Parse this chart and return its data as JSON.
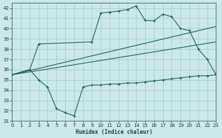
{
  "xlabel": "Humidex (Indice chaleur)",
  "bg_color": "#cce8e8",
  "grid_color": "#99cccc",
  "line_color": "#1a6655",
  "xlim": [
    0,
    23
  ],
  "ylim": [
    31,
    42.5
  ],
  "yticks": [
    31,
    32,
    33,
    34,
    35,
    36,
    37,
    38,
    39,
    40,
    41,
    42
  ],
  "xticks": [
    0,
    1,
    2,
    3,
    4,
    5,
    6,
    7,
    8,
    9,
    10,
    11,
    12,
    13,
    14,
    15,
    16,
    17,
    18,
    19,
    20,
    21,
    22,
    23
  ],
  "curve_upper_x": [
    0,
    2,
    3,
    9,
    10,
    11,
    12,
    13,
    14,
    15,
    16,
    17,
    18,
    19,
    20,
    21,
    22,
    23
  ],
  "curve_upper_y": [
    35.5,
    36.0,
    38.5,
    38.7,
    41.5,
    41.6,
    41.7,
    41.85,
    42.2,
    40.8,
    40.75,
    41.4,
    41.15,
    40.0,
    39.8,
    38.0,
    37.0,
    35.5
  ],
  "curve_lower_x": [
    0,
    2,
    3,
    4,
    5,
    6,
    7,
    8,
    9,
    10,
    11,
    12,
    13,
    14,
    15,
    16,
    17,
    18,
    19,
    20,
    21,
    22,
    23
  ],
  "curve_lower_y": [
    35.5,
    36.0,
    35.0,
    34.3,
    32.2,
    31.8,
    31.5,
    34.3,
    34.5,
    34.5,
    34.6,
    34.6,
    34.7,
    34.7,
    34.8,
    34.9,
    35.0,
    35.1,
    35.2,
    35.3,
    35.4,
    35.4,
    35.5
  ],
  "line1_x": [
    0,
    23
  ],
  "line1_y": [
    35.5,
    40.2
  ],
  "line2_x": [
    0,
    23
  ],
  "line2_y": [
    35.5,
    38.7
  ]
}
